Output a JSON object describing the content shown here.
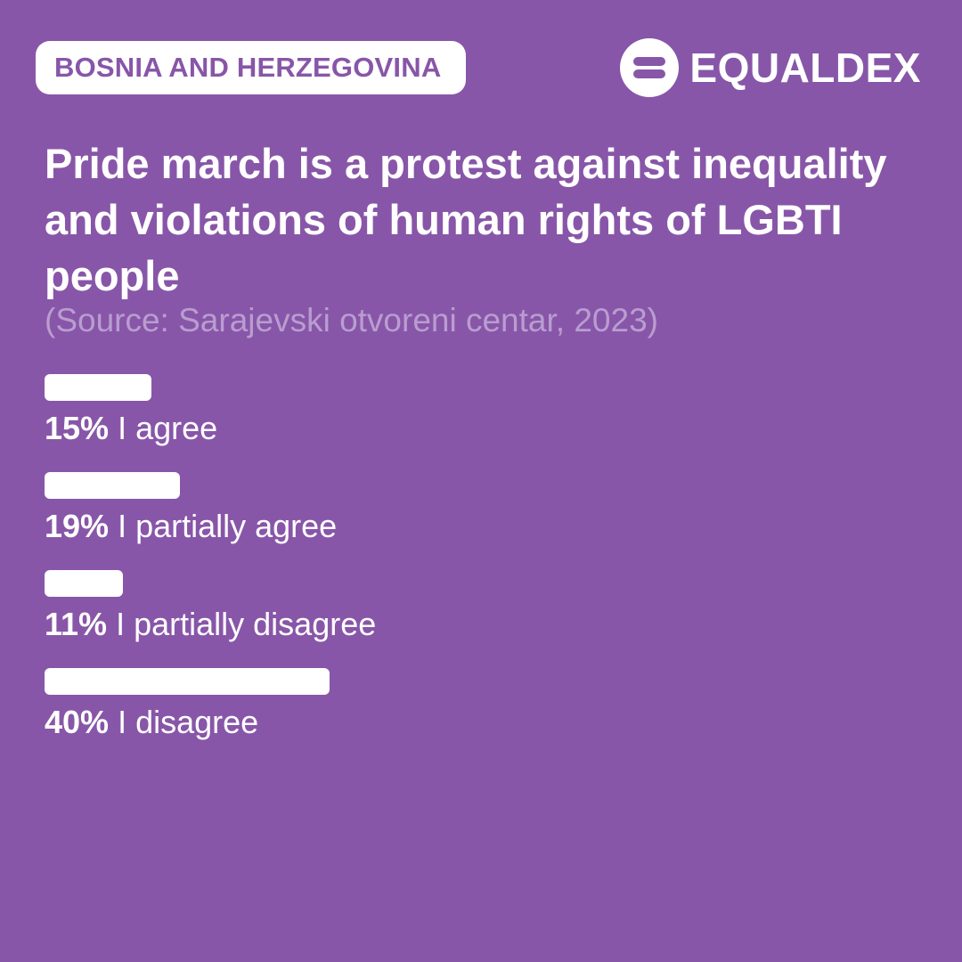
{
  "header": {
    "country": "BOSNIA AND HERZEGOVINA",
    "brand": "EQUALDEX"
  },
  "colors": {
    "background": "#8856a8",
    "foreground": "#ffffff",
    "source_text": "#b99dd0"
  },
  "chart_data": {
    "type": "bar",
    "orientation": "horizontal",
    "title": "Pride march is a protest against inequality and violations of human rights of LGBTI people",
    "subtitle": "(Source: Sarajevski otvoreni centar, 2023)",
    "xlim": [
      0,
      100
    ],
    "grid": false,
    "categories": [
      "I agree",
      "I partially agree",
      "I partially disagree",
      "I disagree"
    ],
    "values": [
      15,
      19,
      11,
      40
    ],
    "value_labels": [
      "15%",
      "19%",
      "11%",
      "40%"
    ]
  }
}
